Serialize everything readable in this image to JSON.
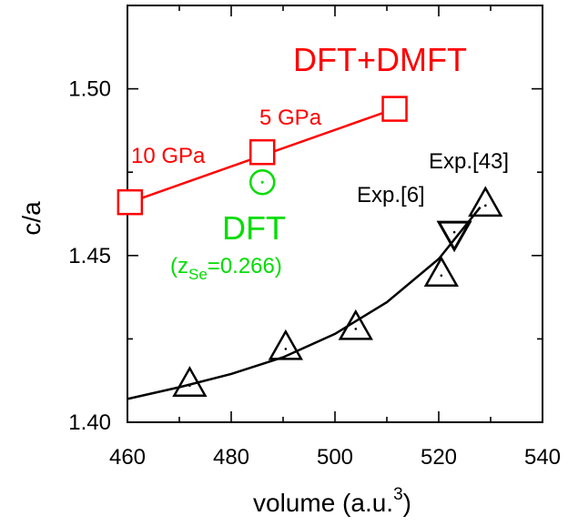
{
  "chart_data": {
    "type": "scatter",
    "title": "",
    "xlabel": "volume (a.u.",
    "xlabel_sup": "3",
    "xlabel_close": ")",
    "ylabel": "c/a",
    "xlim": [
      460,
      540
    ],
    "ylim": [
      1.4,
      1.525
    ],
    "x_ticks": [
      460,
      480,
      500,
      520,
      540
    ],
    "x_tick_labels": [
      "460",
      "480",
      "500",
      "520",
      "540"
    ],
    "y_ticks": [
      1.4,
      1.45,
      1.5
    ],
    "y_tick_labels": [
      "1.40",
      "1.45",
      "1.50"
    ],
    "grid": false,
    "series": [
      {
        "name": "DFT+DMFT",
        "color": "#ff0000",
        "marker": "square",
        "points": [
          {
            "x": 460.5,
            "y": 1.466,
            "label": "10 GPa"
          },
          {
            "x": 486.0,
            "y": 1.481,
            "label": "5 GPa"
          },
          {
            "x": 511.5,
            "y": 1.494,
            "label": ""
          }
        ],
        "fit_line": [
          [
            460.5,
            1.466
          ],
          [
            511.5,
            1.494
          ]
        ]
      },
      {
        "name": "DFT",
        "subname_prefix": "(z",
        "subname_sub": "Se",
        "subname_suffix": "=0.266)",
        "color": "#00dd00",
        "marker": "circle",
        "points": [
          {
            "x": 486.0,
            "y": 1.472
          }
        ]
      },
      {
        "name": "",
        "color": "#000000",
        "marker": "triangle-up",
        "points": [
          {
            "x": 472.0,
            "y": 1.411
          },
          {
            "x": 490.5,
            "y": 1.422
          },
          {
            "x": 504.0,
            "y": 1.428
          },
          {
            "x": 520.5,
            "y": 1.444
          },
          {
            "x": 529.0,
            "y": 1.465
          }
        ],
        "fit_curve": [
          [
            460,
            1.407
          ],
          [
            470,
            1.4105
          ],
          [
            480,
            1.4145
          ],
          [
            490,
            1.4195
          ],
          [
            500,
            1.4265
          ],
          [
            510,
            1.436
          ],
          [
            520,
            1.449
          ],
          [
            528,
            1.4645
          ]
        ]
      },
      {
        "name": "Exp.[6]",
        "color": "#000000",
        "marker": "triangle-down",
        "points": [
          {
            "x": 523.0,
            "y": 1.457
          }
        ]
      }
    ],
    "annotations": {
      "exp43": "Exp.[43]",
      "exp6": "Exp.[6]",
      "dft": "DFT",
      "dftdmft": "DFT+DMFT",
      "p10": "10 GPa",
      "p5": "5 GPa"
    }
  }
}
